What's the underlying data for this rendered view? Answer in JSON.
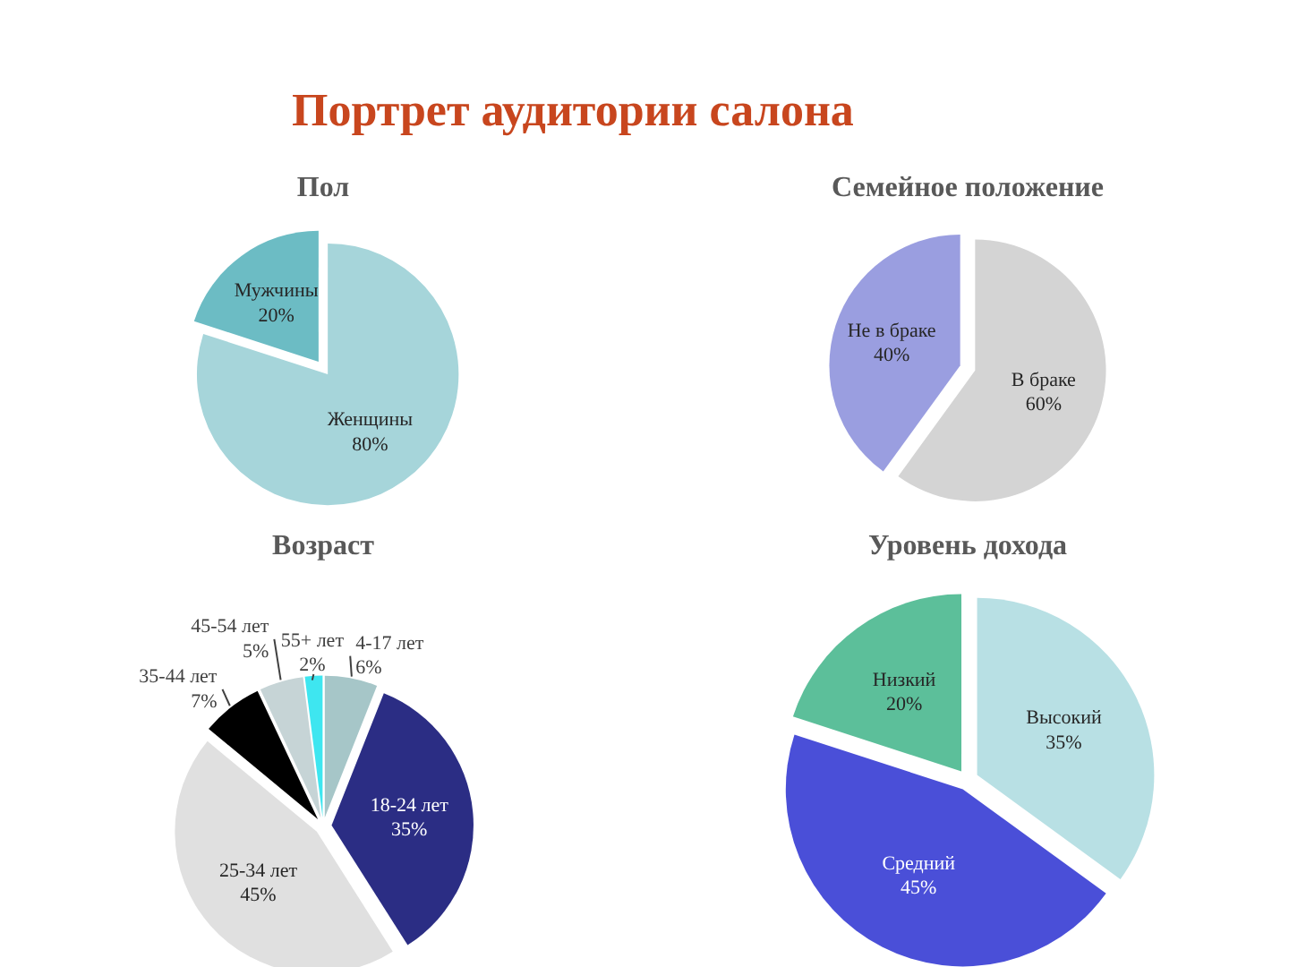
{
  "chart_data": [
    {
      "type": "pie",
      "title": "Пол",
      "categories": [
        "Женщины",
        "Мужчины"
      ],
      "values": [
        80,
        20
      ],
      "colors": [
        "#a6d5da",
        "#6cbcc4"
      ],
      "value_labels": [
        "80%",
        "20%"
      ],
      "annotations": [
        "Портрет аудитории салона"
      ]
    },
    {
      "type": "pie",
      "title": "Семейное положение",
      "categories": [
        "В браке",
        "Не в браке"
      ],
      "values": [
        60,
        40
      ],
      "colors": [
        "#d4d4d4",
        "#9a9ee0"
      ],
      "value_labels": [
        "60%",
        "40%"
      ]
    },
    {
      "type": "pie",
      "title": "Возраст",
      "categories": [
        "4-17 лет",
        "18-24 лет",
        "25-34 лет",
        "35-44 лет",
        "45-54 лет",
        "55+ лет"
      ],
      "values": [
        6,
        35,
        45,
        7,
        5,
        2
      ],
      "colors": [
        "#a6c6c8",
        "#2b2d84",
        "#e0e0e0",
        "#000000",
        "#c6d4d6",
        "#3ee6f0"
      ],
      "value_labels": [
        "6%",
        "35%",
        "45%",
        "7%",
        "5%",
        "2%"
      ]
    },
    {
      "type": "pie",
      "title": "Уровень дохода",
      "categories": [
        "Высокий",
        "Средний",
        "Низкий"
      ],
      "values": [
        35,
        45,
        20
      ],
      "colors": [
        "#b8e0e4",
        "#4a4fd8",
        "#5cbf9a"
      ],
      "value_labels": [
        "35%",
        "45%",
        "20%"
      ]
    }
  ]
}
